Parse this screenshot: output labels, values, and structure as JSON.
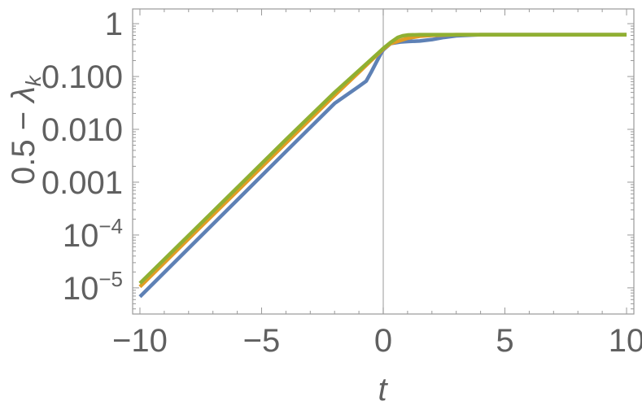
{
  "chart_data": {
    "type": "line",
    "xlabel": "t",
    "ylabel_prefix": "0.5 − ",
    "ylabel_symbol": "λ",
    "ylabel_subscript": "k",
    "xlim": [
      -10.3,
      10.3
    ],
    "ylim": [
      3.2e-06,
      1.9
    ],
    "yscale": "log",
    "grid": false,
    "frame": true,
    "x_ticks": [
      {
        "value": -10,
        "label": "−10"
      },
      {
        "value": -5,
        "label": "−5"
      },
      {
        "value": 0,
        "label": "0"
      },
      {
        "value": 5,
        "label": "5"
      },
      {
        "value": 10,
        "label": "10"
      }
    ],
    "y_ticks": [
      {
        "value": 1,
        "label": "1"
      },
      {
        "value": 0.1,
        "label": "0.100"
      },
      {
        "value": 0.01,
        "label": "0.010"
      },
      {
        "value": 0.001,
        "label": "0.001"
      },
      {
        "value": 0.0001,
        "label": "10",
        "exp": "−4"
      },
      {
        "value": 1e-05,
        "label": "10",
        "exp": "−5"
      }
    ],
    "vertical_reference_line": 0,
    "series": [
      {
        "color": "#5e81b5",
        "x": [
          -10,
          -8,
          -6,
          -4,
          -2,
          -1,
          -0.7,
          -0.5,
          -0.3,
          -0.1,
          0,
          0.3,
          0.7,
          1,
          1.5,
          2,
          2.5,
          3,
          4,
          6,
          8,
          10
        ],
        "y": [
          6.8e-06,
          5.6e-05,
          0.00046,
          0.0038,
          0.031,
          0.065,
          0.082,
          0.12,
          0.18,
          0.27,
          0.32,
          0.42,
          0.45,
          0.46,
          0.47,
          0.5,
          0.55,
          0.59,
          0.62,
          0.62,
          0.62,
          0.62
        ]
      },
      {
        "color": "#e19c24",
        "x": [
          -10,
          -8,
          -6,
          -4,
          -2,
          -1,
          -0.5,
          -0.2,
          0,
          0.3,
          0.7,
          1,
          1.5,
          2,
          3,
          4,
          6,
          8,
          10
        ],
        "y": [
          1.05e-05,
          8.5e-05,
          0.00068,
          0.0055,
          0.044,
          0.12,
          0.2,
          0.27,
          0.33,
          0.42,
          0.48,
          0.53,
          0.58,
          0.6,
          0.62,
          0.62,
          0.62,
          0.62,
          0.62
        ]
      },
      {
        "color": "#8fb032",
        "x": [
          -10,
          -8,
          -6,
          -4,
          -2,
          -1,
          -0.5,
          -0.2,
          0,
          0.3,
          0.6,
          0.8,
          1,
          1.5,
          2,
          3,
          4,
          6,
          8,
          10
        ],
        "y": [
          1.22e-05,
          9.8e-05,
          0.00079,
          0.0064,
          0.05,
          0.13,
          0.21,
          0.28,
          0.34,
          0.44,
          0.55,
          0.59,
          0.61,
          0.62,
          0.62,
          0.62,
          0.62,
          0.62,
          0.62,
          0.62
        ]
      }
    ]
  }
}
